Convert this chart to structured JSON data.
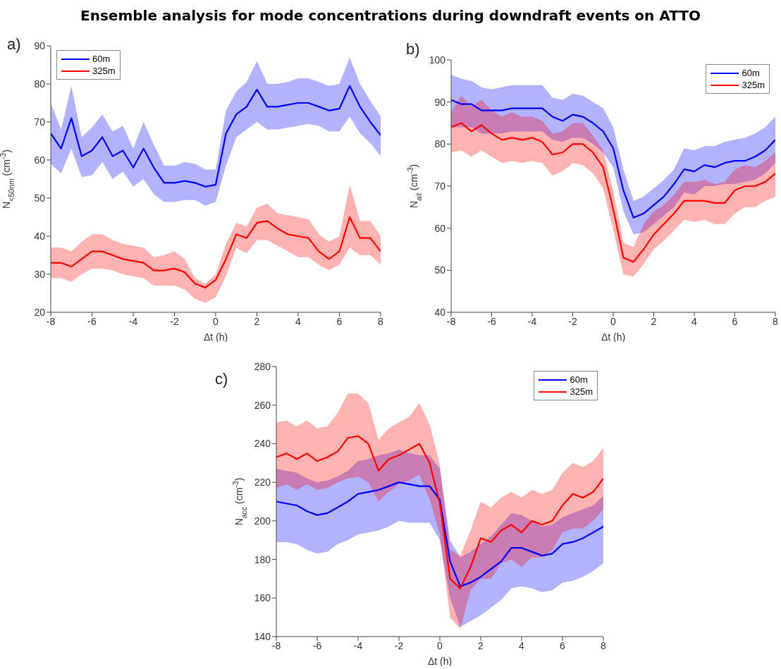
{
  "chart_data": [
    {
      "type": "line",
      "title": "Ensemble analysis for mode concentrations during downdraft events on ATTO",
      "annotations": [
        "a)"
      ],
      "xlabel": "Δt (h)",
      "ylabel": "N$_{<50nm}$ (cm$^{-3}$)",
      "x": [
        -8,
        -7.5,
        -7,
        -6.5,
        -6,
        -5.5,
        -5,
        -4.5,
        -4,
        -3.5,
        -3,
        -2.5,
        -2,
        -1.5,
        -1,
        -0.5,
        0,
        0.5,
        1,
        1.5,
        2,
        2.5,
        3,
        3.5,
        4,
        4.5,
        5,
        5.5,
        6,
        6.5,
        7,
        7.5,
        8
      ],
      "xlim": [
        -8,
        8
      ],
      "xticks": [
        -8,
        -6,
        -4,
        -2,
        0,
        2,
        4,
        6,
        8
      ],
      "ylim": [
        20,
        90
      ],
      "yticks": [
        20,
        30,
        40,
        50,
        60,
        70,
        80,
        90
      ],
      "legend": "top left",
      "series": [
        {
          "name": "60m",
          "color": "#0000ff",
          "values": [
            67,
            63,
            71,
            61,
            62.5,
            66,
            61,
            62.5,
            58,
            63,
            58,
            54,
            54,
            54.5,
            54,
            53,
            53.5,
            67,
            72,
            74,
            78.5,
            74,
            74,
            74.5,
            75,
            75,
            74,
            73,
            73.5,
            79.5,
            74,
            70,
            66.5
          ],
          "upper": [
            75,
            68,
            79.5,
            66,
            68.5,
            72,
            67.5,
            69,
            63,
            70,
            64,
            58.5,
            58.5,
            59.5,
            59,
            57.5,
            57.5,
            73,
            78,
            80.5,
            86,
            80,
            80,
            80.5,
            81.5,
            81.5,
            80.5,
            79.5,
            80,
            87,
            80,
            75.5,
            71.5
          ],
          "lower": [
            59,
            56.5,
            63,
            55.5,
            56,
            59.5,
            55,
            57,
            53,
            55,
            51,
            49,
            49,
            49.5,
            49.5,
            48,
            49,
            58.5,
            66,
            68,
            70,
            68,
            68,
            68.5,
            69,
            69.5,
            69,
            67.5,
            67.5,
            71.5,
            67,
            64.5,
            61
          ]
        },
        {
          "name": "325m",
          "color": "#ff0000",
          "values": [
            33,
            33,
            32,
            34,
            36,
            36,
            35,
            34,
            33.5,
            33,
            31,
            31,
            31.5,
            30.5,
            27.5,
            26.5,
            28.5,
            34,
            40.5,
            39.5,
            43.5,
            44,
            42,
            40.5,
            40,
            39.5,
            36,
            34,
            36,
            45,
            39.5,
            39.5,
            36
          ],
          "upper": [
            37,
            37,
            36,
            38.5,
            40.5,
            40.5,
            39,
            38,
            37.5,
            37,
            34.5,
            35,
            36,
            34,
            29,
            27.5,
            30,
            38,
            43.5,
            42.5,
            47.5,
            48.5,
            46,
            45.5,
            45,
            44.5,
            40.5,
            38.5,
            40,
            53.5,
            44,
            44,
            40
          ],
          "lower": [
            29,
            29,
            28,
            30,
            31.5,
            31.5,
            31,
            30,
            29.5,
            29,
            27,
            27,
            27,
            26,
            23.5,
            22.5,
            24,
            29.5,
            37,
            35.5,
            39,
            39,
            37.5,
            36,
            34.5,
            34.5,
            32.5,
            31,
            32.5,
            37,
            35,
            35,
            32.5
          ]
        }
      ]
    },
    {
      "type": "line",
      "annotations": [
        "b)"
      ],
      "xlabel": "Δt (h)",
      "ylabel": "N$_{ait}$ (cm$^{-3}$)",
      "x": [
        -8,
        -7.5,
        -7,
        -6.5,
        -6,
        -5.5,
        -5,
        -4.5,
        -4,
        -3.5,
        -3,
        -2.5,
        -2,
        -1.5,
        -1,
        -0.5,
        0,
        0.5,
        1,
        1.5,
        2,
        2.5,
        3,
        3.5,
        4,
        4.5,
        5,
        5.5,
        6,
        6.5,
        7,
        7.5,
        8
      ],
      "xlim": [
        -8,
        8
      ],
      "xticks": [
        -8,
        -6,
        -4,
        -2,
        0,
        2,
        4,
        6,
        8
      ],
      "ylim": [
        40,
        100
      ],
      "yticks": [
        40,
        50,
        60,
        70,
        80,
        90,
        100
      ],
      "legend": "top right",
      "series": [
        {
          "name": "60m",
          "color": "#0000ff",
          "values": [
            90.5,
            89.5,
            89.5,
            88,
            88,
            88,
            88.5,
            88.5,
            88.5,
            88.5,
            86.5,
            85.5,
            87,
            86.5,
            85,
            83,
            79,
            69,
            62.5,
            63.5,
            65.5,
            67.5,
            70.5,
            74,
            73.5,
            75,
            74.5,
            75.5,
            76,
            76,
            77,
            78.5,
            81
          ],
          "upper": [
            96.5,
            95.5,
            95,
            93.5,
            93,
            93.5,
            94,
            94,
            94,
            94,
            91,
            90.5,
            92,
            91.5,
            90,
            88.5,
            84,
            74,
            66.5,
            67.5,
            69.5,
            71.5,
            74,
            79,
            78.5,
            79.5,
            79.5,
            80.5,
            81,
            81.5,
            82.5,
            84,
            86.5
          ],
          "lower": [
            84,
            84,
            84,
            82.5,
            82.5,
            82.5,
            83,
            83,
            83,
            83,
            81,
            80.5,
            81.5,
            81.5,
            80,
            78,
            74.5,
            64,
            58.5,
            59,
            61,
            63,
            65,
            68.5,
            68,
            70,
            70,
            70.5,
            70.5,
            71,
            71.5,
            73,
            75.5
          ]
        },
        {
          "name": "325m",
          "color": "#ff0000",
          "values": [
            84,
            85,
            83,
            84.5,
            82.5,
            81,
            81.5,
            81,
            81.5,
            80.5,
            77.5,
            78,
            80,
            80,
            78,
            74.5,
            64.5,
            53,
            52,
            55,
            58.5,
            61,
            63.5,
            66.5,
            66.5,
            66.5,
            66,
            66,
            69,
            70,
            70,
            71,
            73
          ],
          "upper": [
            87.5,
            91.5,
            89,
            90.5,
            88,
            86.5,
            87.5,
            86.5,
            86.5,
            85.5,
            82.5,
            83,
            85,
            85,
            82,
            78.5,
            69,
            56.5,
            55.5,
            61,
            64,
            65.5,
            68,
            71,
            71,
            71.5,
            70.5,
            71,
            74,
            75,
            74.5,
            76,
            78
          ],
          "lower": [
            78,
            78.5,
            77,
            78.5,
            77,
            75.5,
            76,
            75.5,
            76,
            75.5,
            72.5,
            73.5,
            75.5,
            75,
            73,
            69.5,
            59.5,
            49,
            48.5,
            51.5,
            55,
            57,
            59.5,
            62,
            61.5,
            62,
            61,
            61,
            63.5,
            65,
            65,
            66.5,
            67.5
          ]
        }
      ]
    },
    {
      "type": "line",
      "annotations": [
        "c)"
      ],
      "xlabel": "Δt (h)",
      "ylabel": "N$_{acc}$ (cm$^{-3}$)",
      "x": [
        -8,
        -7.5,
        -7,
        -6.5,
        -6,
        -5.5,
        -5,
        -4.5,
        -4,
        -3.5,
        -3,
        -2.5,
        -2,
        -1.5,
        -1,
        -0.5,
        0,
        0.5,
        1,
        1.5,
        2,
        2.5,
        3,
        3.5,
        4,
        4.5,
        5,
        5.5,
        6,
        6.5,
        7,
        7.5,
        8
      ],
      "xlim": [
        -8,
        8
      ],
      "xticks": [
        -8,
        -6,
        -4,
        -2,
        0,
        2,
        4,
        6,
        8
      ],
      "ylim": [
        140,
        280
      ],
      "yticks": [
        140,
        160,
        180,
        200,
        220,
        240,
        260,
        280
      ],
      "legend": "top right",
      "series": [
        {
          "name": "60m",
          "color": "#0000ff",
          "values": [
            210,
            209,
            208,
            205,
            203,
            204,
            207,
            210,
            214,
            215,
            216,
            218,
            220,
            219,
            218,
            218,
            211,
            179,
            166,
            168,
            171,
            175,
            179,
            186,
            186,
            184,
            182,
            183,
            188,
            189,
            191,
            194,
            197
          ],
          "upper": [
            227,
            226,
            225,
            222,
            220,
            221,
            223,
            226,
            231,
            232,
            234,
            235,
            237,
            235,
            234,
            234,
            227,
            190,
            181,
            184,
            188,
            192,
            198,
            204,
            203,
            200,
            197,
            198,
            202,
            204,
            206,
            208,
            213
          ],
          "lower": [
            189,
            189,
            188,
            185,
            183,
            184,
            188,
            190,
            193,
            194,
            195,
            197,
            200,
            199,
            199,
            199,
            190,
            160,
            145,
            148,
            151,
            155,
            159,
            165,
            166,
            165,
            163,
            164,
            168,
            169,
            171,
            174,
            178
          ]
        },
        {
          "name": "325m",
          "color": "#ff0000",
          "values": [
            233,
            235,
            232,
            235,
            231,
            233,
            236,
            243,
            244,
            240,
            226,
            232,
            234,
            237,
            240,
            230,
            209,
            170,
            165,
            176,
            191,
            189,
            195,
            198,
            194,
            200,
            198,
            200,
            208,
            214,
            212,
            215,
            222
          ],
          "upper": [
            251,
            252,
            249,
            252,
            248,
            249,
            256,
            266,
            266,
            261,
            242,
            248,
            251,
            254,
            261,
            250,
            229,
            185,
            182,
            195,
            210,
            207,
            212,
            215,
            212,
            216,
            214,
            216,
            225,
            230,
            228,
            231,
            238
          ],
          "lower": [
            217,
            219,
            216,
            219,
            216,
            217,
            220,
            222,
            223,
            220,
            210,
            215,
            219,
            221,
            224,
            211,
            193,
            150,
            144,
            164,
            170,
            170,
            178,
            180,
            176,
            181,
            181,
            185,
            194,
            196,
            196,
            200,
            206
          ]
        }
      ]
    }
  ]
}
